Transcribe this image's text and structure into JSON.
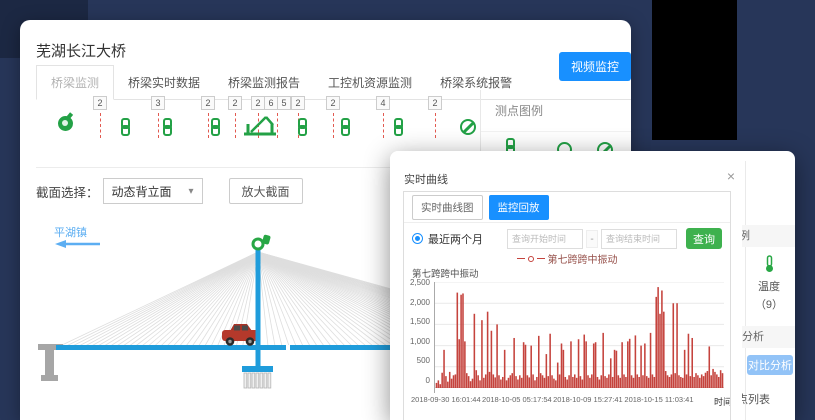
{
  "main_window": {
    "title": "芜湖长江大桥",
    "tabs": [
      "桥梁监测",
      "桥梁实时数据",
      "桥梁监测报告",
      "工控机资源监测",
      "桥梁系统报警"
    ],
    "video_button": "视频监控",
    "sensor_badges": [
      "2",
      "3",
      "2",
      "2",
      "2",
      "6",
      "5",
      "2",
      "2",
      "4",
      "2"
    ],
    "legend_panel_title": "测点图例",
    "section_label": "截面选择：",
    "section_value": "动态背立面",
    "zoom_button": "放大截面",
    "bridge_direction": "平湖镇"
  },
  "overlay_window": {
    "sidebar": {
      "legend_title": "测点图例",
      "temperature_label": "温度",
      "temperature_count": "（9）",
      "compare_section": "对比分析",
      "compare_button": "对比分析",
      "list_label": "测点列表"
    },
    "dialog": {
      "title": "实时曲线",
      "close_icon": "×",
      "tabs": [
        "实时曲线图",
        "监控回放"
      ],
      "radio_label": "最近两个月",
      "start_placeholder": "查询开始时间",
      "range_separator": "-",
      "end_placeholder": "查询结束时间",
      "query_button": "查询",
      "legend_label": "第七跨跨中振动",
      "chart_title": "第七跨跨中振动",
      "x_axis_name": "时间"
    }
  },
  "icons": {
    "chevron_down": "▾"
  },
  "colors": {
    "primary_blue": "#1890ff",
    "green": "#23a146",
    "chart_red": "#c5433d",
    "bridge_blue": "#1f9cdb",
    "background_navy": "#273659"
  },
  "chart_data": {
    "type": "line",
    "title": "第七跨跨中振动",
    "xlabel": "时间",
    "ylabel": "",
    "ylim": [
      0,
      2500
    ],
    "grid": true,
    "legend_position": "top",
    "y_ticks": [
      "2,500",
      "2,000",
      "1,500",
      "1,000",
      "500",
      "0"
    ],
    "x_tick_labels": [
      "2018-09-30 16:01:44",
      "2018-10-05 05:17:54",
      "2018-10-09 15:27:41",
      "2018-10-15 11:03:41"
    ],
    "series": [
      {
        "name": "第七跨跨中振动",
        "color": "#c5433d",
        "values": [
          120,
          180,
          90,
          360,
          900,
          280,
          150,
          380,
          220,
          300,
          320,
          2250,
          1150,
          2200,
          2230,
          1100,
          350,
          280,
          160,
          220,
          1750,
          420,
          300,
          180,
          1600,
          240,
          320,
          1800,
          380,
          1350,
          320,
          250,
          1500,
          300,
          200,
          260,
          900,
          180,
          240,
          300,
          350,
          1180,
          280,
          200,
          300,
          240,
          1080,
          1020,
          300,
          250,
          1000,
          320,
          180,
          260,
          1230,
          350,
          300,
          240,
          800,
          280,
          1280,
          300,
          220,
          180,
          600,
          320,
          1050,
          900,
          260,
          200,
          300,
          1100,
          260,
          320,
          240,
          1150,
          280,
          200,
          1260,
          1100,
          300,
          240,
          320,
          1050,
          1080,
          260,
          200,
          300,
          1300,
          280,
          240,
          320,
          700,
          260,
          900,
          880,
          300,
          240,
          1080,
          320,
          260,
          1100,
          1160,
          300,
          240,
          1240,
          320,
          260,
          1000,
          300,
          1050,
          280,
          240,
          1300,
          320,
          260,
          2150,
          2380,
          1750,
          2300,
          1800,
          400,
          300,
          260,
          320,
          2000,
          350,
          2000,
          300,
          260,
          240,
          900,
          320,
          1280,
          280,
          1180,
          260,
          350,
          300,
          240,
          320,
          280,
          360,
          400,
          980,
          300,
          450,
          380,
          320,
          260,
          420,
          350
        ]
      }
    ]
  }
}
